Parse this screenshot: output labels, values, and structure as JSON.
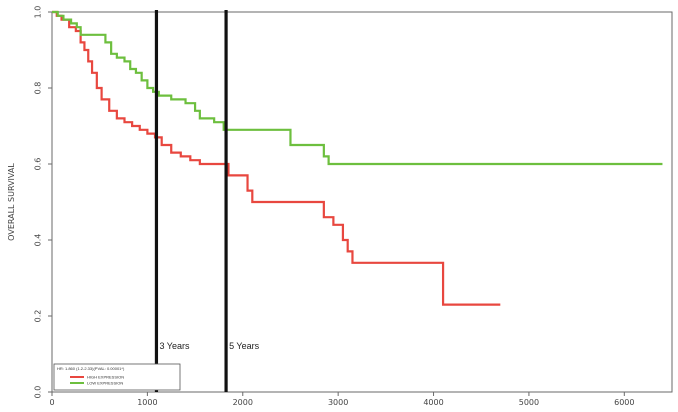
{
  "chart_data": {
    "type": "line",
    "title": "",
    "xlabel": "",
    "ylabel": "OVERALL SURVIVAL",
    "xlim": [
      0,
      6500
    ],
    "ylim": [
      0.0,
      1.0
    ],
    "x_ticks": [
      0,
      1000,
      2000,
      3000,
      4000,
      5000,
      6000
    ],
    "x_tick_labels": [
      "0",
      "1000",
      "2000",
      "3000",
      "4000",
      "5000",
      "6000"
    ],
    "y_ticks": [
      0.0,
      0.2,
      0.4,
      0.6,
      0.8,
      1.0
    ],
    "y_tick_labels": [
      "0.0",
      "0.2",
      "0.4",
      "0.6",
      "0.8",
      "1.0"
    ],
    "grid": false,
    "legend_placement": "bottom-left",
    "legend_header": "HR: 1.860 (1.2-2.33)(PVAL: 0.00001*)",
    "series": [
      {
        "name": "HIGH EXPRESSION",
        "color": "#e8473f",
        "x": [
          0,
          50,
          100,
          180,
          250,
          300,
          340,
          380,
          420,
          470,
          520,
          600,
          680,
          760,
          840,
          920,
          1000,
          1080,
          1150,
          1250,
          1350,
          1450,
          1550,
          1800,
          1850,
          2050,
          2100,
          2300,
          2850,
          2950,
          3050,
          3100,
          3150,
          3500,
          4100,
          4700
        ],
        "y": [
          1.0,
          0.99,
          0.98,
          0.96,
          0.95,
          0.92,
          0.9,
          0.87,
          0.84,
          0.8,
          0.77,
          0.74,
          0.72,
          0.71,
          0.7,
          0.69,
          0.68,
          0.67,
          0.65,
          0.63,
          0.62,
          0.61,
          0.6,
          0.6,
          0.57,
          0.53,
          0.5,
          0.5,
          0.46,
          0.44,
          0.4,
          0.37,
          0.34,
          0.34,
          0.23,
          0.23
        ]
      },
      {
        "name": "LOW EXPRESSION",
        "color": "#6dbf3e",
        "x": [
          0,
          60,
          120,
          200,
          260,
          300,
          400,
          560,
          620,
          680,
          760,
          820,
          880,
          940,
          1000,
          1060,
          1120,
          1250,
          1400,
          1500,
          1550,
          1700,
          1800,
          2000,
          2500,
          2850,
          2900,
          6400
        ],
        "y": [
          1.0,
          0.99,
          0.98,
          0.97,
          0.96,
          0.94,
          0.94,
          0.92,
          0.89,
          0.88,
          0.87,
          0.85,
          0.84,
          0.82,
          0.8,
          0.79,
          0.78,
          0.77,
          0.76,
          0.74,
          0.72,
          0.71,
          0.69,
          0.69,
          0.65,
          0.62,
          0.6,
          0.6
        ]
      }
    ],
    "reference_lines": [
      {
        "x": 1095,
        "label": "3 Years"
      },
      {
        "x": 1825,
        "label": "5 Years"
      }
    ]
  }
}
